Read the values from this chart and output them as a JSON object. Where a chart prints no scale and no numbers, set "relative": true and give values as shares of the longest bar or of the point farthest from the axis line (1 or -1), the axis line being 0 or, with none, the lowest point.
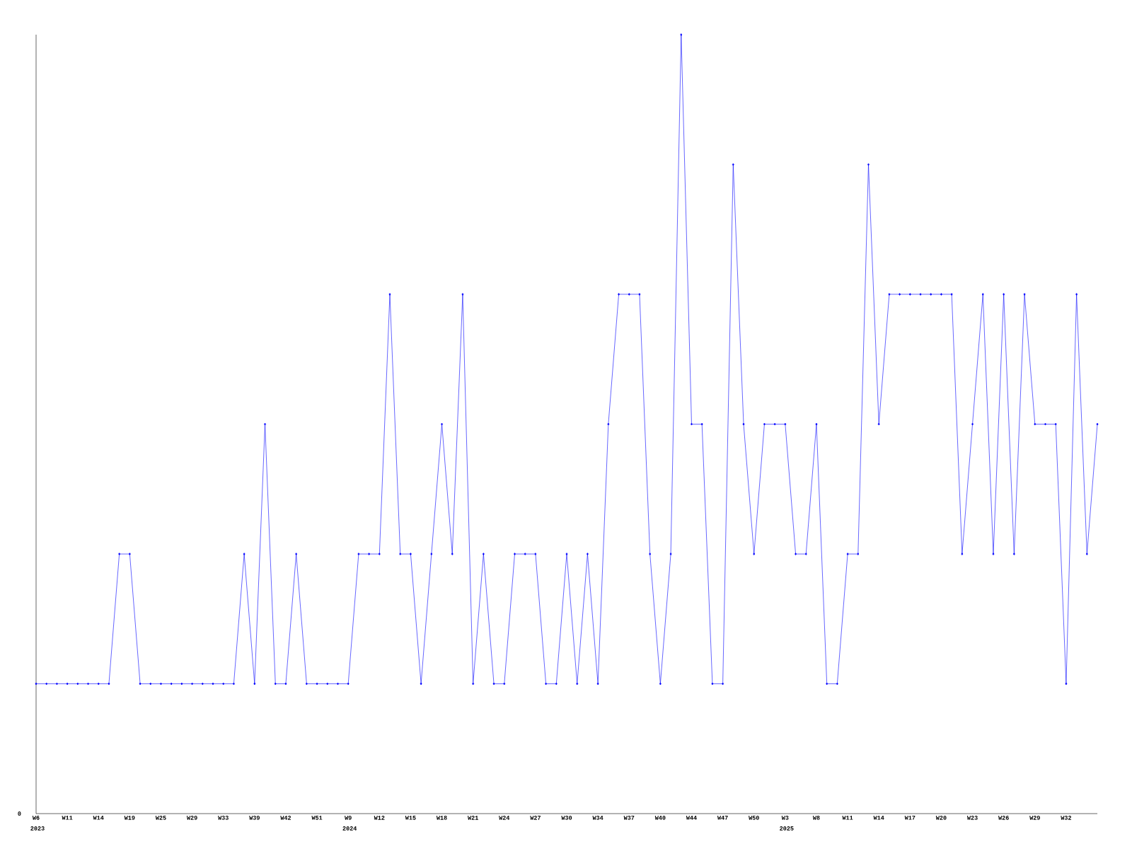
{
  "chart_data": {
    "type": "line",
    "relative": true,
    "color": "#0000ff",
    "marker": "diamond",
    "line_style": "solid",
    "categories": [
      "W6",
      null,
      null,
      "W11",
      null,
      null,
      "W14",
      null,
      null,
      "W19",
      null,
      null,
      "W25",
      null,
      null,
      "W29",
      null,
      null,
      "W33",
      null,
      null,
      "W39",
      null,
      null,
      "W42",
      null,
      null,
      "W51",
      null,
      null,
      "W9",
      null,
      null,
      "W12",
      null,
      null,
      "W15",
      null,
      null,
      "W18",
      null,
      null,
      "W21",
      null,
      null,
      "W24",
      null,
      null,
      "W27",
      null,
      null,
      "W30",
      null,
      null,
      "W34",
      null,
      null,
      "W37",
      null,
      null,
      "W40",
      null,
      null,
      "W44",
      null,
      null,
      "W47",
      null,
      null,
      "W50",
      null,
      null,
      "W3",
      null,
      null,
      "W8",
      null,
      null,
      "W11",
      null,
      null,
      "W14",
      null,
      null,
      "W17",
      null,
      null,
      "W20",
      null,
      null,
      "W23",
      null,
      null,
      "W26",
      null,
      null,
      "W29",
      null,
      null,
      "W32",
      null,
      null,
      null
    ],
    "values": [
      0.1667,
      0.1667,
      0.1667,
      0.1667,
      0.1667,
      0.1667,
      0.1667,
      0.1667,
      0.3333,
      0.3333,
      0.1667,
      0.1667,
      0.1667,
      0.1667,
      0.1667,
      0.1667,
      0.1667,
      0.1667,
      0.1667,
      0.1667,
      0.3333,
      0.1667,
      0.5,
      0.1667,
      0.1667,
      0.3333,
      0.1667,
      0.1667,
      0.1667,
      0.1667,
      0.1667,
      0.3333,
      0.3333,
      0.3333,
      0.6667,
      0.3333,
      0.3333,
      0.1667,
      0.3333,
      0.5,
      0.3333,
      0.6667,
      0.1667,
      0.3333,
      0.1667,
      0.1667,
      0.3333,
      0.3333,
      0.3333,
      0.1667,
      0.1667,
      0.3333,
      0.1667,
      0.3333,
      0.1667,
      0.5,
      0.6667,
      0.6667,
      0.6667,
      0.3333,
      0.1667,
      0.3333,
      1,
      0.5,
      0.5,
      0.1667,
      0.1667,
      0.8333,
      0.5,
      0.3333,
      0.5,
      0.5,
      0.5,
      0.3333,
      0.3333,
      0.5,
      0.1667,
      0.1667,
      0.3333,
      0.3333,
      0.8333,
      0.5,
      0.6667,
      0.6667,
      0.6667,
      0.6667,
      0.6667,
      0.6667,
      0.6667,
      0.3333,
      0.5,
      0.6667,
      0.3333,
      0.6667,
      0.3333,
      0.6667,
      0.5,
      0.5,
      0.5,
      0.1667,
      0.6667,
      0.3333,
      0.5
    ],
    "annotations": [
      "0",
      "2023",
      "2024",
      "2025"
    ]
  }
}
